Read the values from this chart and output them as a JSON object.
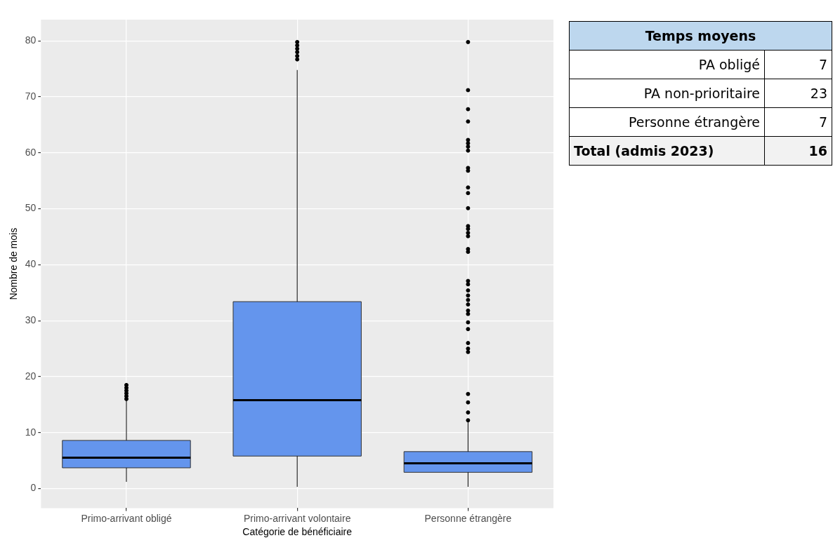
{
  "chart_data": [
    {
      "type": "box",
      "xlabel": "Catégorie de bénéficiaire",
      "ylabel": "Nombre de mois",
      "categories": [
        "Primo-arrivant obligé",
        "Primo-arrivant volontaire",
        "Personne étrangère"
      ],
      "color": "#6495ed",
      "boxes": [
        {
          "low": 1.2,
          "q1": 3.7,
          "median": 5.5,
          "q3": 8.6,
          "high": 15.8,
          "outliers": [
            16,
            16.5,
            17,
            17.5,
            18,
            18.5
          ]
        },
        {
          "low": 0.3,
          "q1": 5.8,
          "median": 15.8,
          "q3": 33.4,
          "high": 74.8,
          "outliers": [
            76.7,
            77.3,
            78,
            78.6,
            79.2,
            79.8
          ]
        },
        {
          "low": 0.3,
          "q1": 2.9,
          "median": 4.5,
          "q3": 6.6,
          "high": 11.9,
          "outliers": [
            12.2,
            13.6,
            15.4,
            16.9,
            24.4,
            25,
            26,
            28.5,
            29.7,
            31.2,
            31.8,
            32.9,
            33.7,
            34.5,
            35.4,
            36.5,
            37.1,
            42.3,
            42.8,
            45.1,
            45.7,
            46.4,
            46.9,
            50.1,
            52.8,
            53.8,
            56.8,
            57.3,
            60.4,
            61.1,
            61.7,
            62.3,
            65.6,
            67.8,
            71.2,
            79.8
          ]
        }
      ],
      "ylim": [
        -3.5,
        83.8
      ],
      "yticks": [
        0,
        10,
        20,
        30,
        40,
        50,
        60,
        70,
        80
      ],
      "grid": true
    },
    {
      "type": "other",
      "title": "Temps moyens",
      "categories": [
        "PA obligé",
        "PA non-prioritaire",
        "Personne étrangère",
        "Total (admis 2023)"
      ],
      "values": [
        7,
        23,
        7,
        16
      ],
      "data_labels": true
    }
  ]
}
